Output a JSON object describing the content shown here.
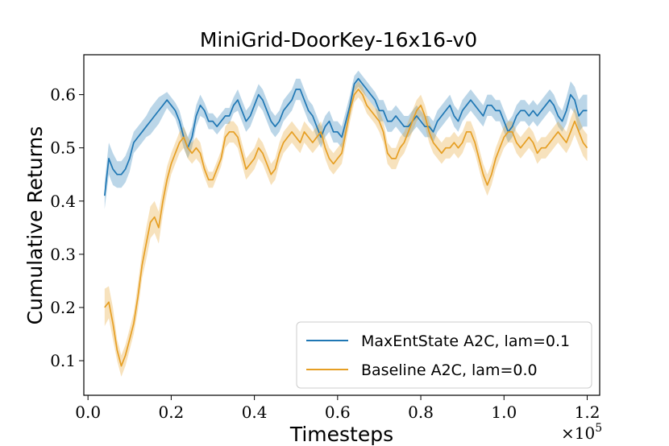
{
  "chart_data": {
    "type": "line",
    "title": "MiniGrid-DoorKey-16x16-v0",
    "xlabel": "Timesteps",
    "ylabel": "Cumulative Returns",
    "x_multiplier_label": "×10",
    "x_multiplier_exp": "5",
    "xlim": [
      -0.01,
      1.23
    ],
    "ylim": [
      0.035,
      0.675
    ],
    "xticks": [
      0.0,
      0.2,
      0.4,
      0.6,
      0.8,
      1.0,
      1.2
    ],
    "xtick_labels": [
      "0.0",
      "0.2",
      "0.4",
      "0.6",
      "0.8",
      "1.0",
      "1.2"
    ],
    "yticks": [
      0.1,
      0.2,
      0.3,
      0.4,
      0.5,
      0.6
    ],
    "ytick_labels": [
      "0.1",
      "0.2",
      "0.3",
      "0.4",
      "0.5",
      "0.6"
    ],
    "grid": false,
    "legend_position": "lower-right",
    "x": [
      0.04,
      0.05,
      0.06,
      0.07,
      0.08,
      0.09,
      0.1,
      0.11,
      0.12,
      0.13,
      0.14,
      0.15,
      0.16,
      0.17,
      0.18,
      0.19,
      0.2,
      0.21,
      0.22,
      0.23,
      0.24,
      0.25,
      0.26,
      0.27,
      0.28,
      0.29,
      0.3,
      0.31,
      0.32,
      0.33,
      0.34,
      0.35,
      0.36,
      0.37,
      0.38,
      0.39,
      0.4,
      0.41,
      0.42,
      0.43,
      0.44,
      0.45,
      0.46,
      0.47,
      0.48,
      0.49,
      0.5,
      0.51,
      0.52,
      0.53,
      0.54,
      0.55,
      0.56,
      0.57,
      0.58,
      0.59,
      0.6,
      0.61,
      0.62,
      0.63,
      0.64,
      0.65,
      0.66,
      0.67,
      0.68,
      0.69,
      0.7,
      0.71,
      0.72,
      0.73,
      0.74,
      0.75,
      0.76,
      0.77,
      0.78,
      0.79,
      0.8,
      0.81,
      0.82,
      0.83,
      0.84,
      0.85,
      0.86,
      0.87,
      0.88,
      0.89,
      0.9,
      0.91,
      0.92,
      0.93,
      0.94,
      0.95,
      0.96,
      0.97,
      0.98,
      0.99,
      1.0,
      1.01,
      1.02,
      1.03,
      1.04,
      1.05,
      1.06,
      1.07,
      1.08,
      1.09,
      1.1,
      1.11,
      1.12,
      1.13,
      1.14,
      1.15,
      1.16,
      1.17,
      1.18,
      1.19,
      1.2
    ],
    "series": [
      {
        "name": "MaxEntState A2C, lam=0.1",
        "color": "#1f77b4",
        "values": [
          0.41,
          0.48,
          0.46,
          0.45,
          0.45,
          0.46,
          0.48,
          0.51,
          0.52,
          0.53,
          0.54,
          0.55,
          0.56,
          0.57,
          0.58,
          0.59,
          0.58,
          0.57,
          0.55,
          0.52,
          0.5,
          0.52,
          0.56,
          0.58,
          0.57,
          0.55,
          0.55,
          0.54,
          0.55,
          0.56,
          0.56,
          0.58,
          0.59,
          0.57,
          0.55,
          0.56,
          0.58,
          0.6,
          0.59,
          0.57,
          0.55,
          0.54,
          0.55,
          0.57,
          0.58,
          0.59,
          0.61,
          0.61,
          0.59,
          0.57,
          0.56,
          0.54,
          0.52,
          0.54,
          0.55,
          0.53,
          0.53,
          0.52,
          0.55,
          0.58,
          0.62,
          0.63,
          0.62,
          0.61,
          0.6,
          0.59,
          0.57,
          0.57,
          0.55,
          0.55,
          0.56,
          0.55,
          0.54,
          0.54,
          0.55,
          0.56,
          0.55,
          0.54,
          0.54,
          0.53,
          0.55,
          0.56,
          0.57,
          0.58,
          0.56,
          0.55,
          0.57,
          0.58,
          0.59,
          0.58,
          0.57,
          0.56,
          0.58,
          0.58,
          0.57,
          0.57,
          0.55,
          0.53,
          0.54,
          0.56,
          0.57,
          0.57,
          0.56,
          0.57,
          0.56,
          0.57,
          0.58,
          0.59,
          0.58,
          0.56,
          0.55,
          0.57,
          0.6,
          0.59,
          0.56,
          0.57,
          0.57
        ],
        "band": [
          0.025,
          0.03,
          0.03,
          0.025,
          0.025,
          0.025,
          0.025,
          0.02,
          0.02,
          0.02,
          0.02,
          0.025,
          0.025,
          0.025,
          0.02,
          0.015,
          0.015,
          0.015,
          0.02,
          0.02,
          0.02,
          0.02,
          0.02,
          0.02,
          0.015,
          0.015,
          0.015,
          0.015,
          0.015,
          0.015,
          0.015,
          0.015,
          0.02,
          0.02,
          0.02,
          0.02,
          0.02,
          0.02,
          0.02,
          0.02,
          0.02,
          0.02,
          0.02,
          0.02,
          0.02,
          0.02,
          0.02,
          0.02,
          0.02,
          0.02,
          0.02,
          0.02,
          0.02,
          0.02,
          0.02,
          0.02,
          0.02,
          0.02,
          0.02,
          0.02,
          0.015,
          0.015,
          0.015,
          0.015,
          0.015,
          0.015,
          0.02,
          0.02,
          0.02,
          0.02,
          0.02,
          0.02,
          0.02,
          0.02,
          0.02,
          0.02,
          0.02,
          0.02,
          0.02,
          0.02,
          0.02,
          0.02,
          0.02,
          0.02,
          0.02,
          0.02,
          0.02,
          0.02,
          0.02,
          0.02,
          0.02,
          0.02,
          0.02,
          0.02,
          0.02,
          0.02,
          0.02,
          0.02,
          0.02,
          0.02,
          0.02,
          0.02,
          0.02,
          0.02,
          0.02,
          0.02,
          0.02,
          0.02,
          0.02,
          0.02,
          0.02,
          0.025,
          0.025,
          0.025,
          0.03,
          0.03,
          0.03
        ]
      },
      {
        "name": "Baseline A2C, lam=0.0",
        "color": "#e69f24",
        "values": [
          0.2,
          0.21,
          0.17,
          0.12,
          0.09,
          0.11,
          0.14,
          0.17,
          0.22,
          0.28,
          0.32,
          0.36,
          0.37,
          0.35,
          0.4,
          0.44,
          0.47,
          0.49,
          0.51,
          0.52,
          0.5,
          0.49,
          0.5,
          0.49,
          0.46,
          0.44,
          0.44,
          0.46,
          0.48,
          0.52,
          0.53,
          0.53,
          0.52,
          0.49,
          0.46,
          0.47,
          0.48,
          0.5,
          0.49,
          0.47,
          0.45,
          0.46,
          0.49,
          0.51,
          0.52,
          0.53,
          0.52,
          0.51,
          0.53,
          0.52,
          0.51,
          0.52,
          0.53,
          0.5,
          0.48,
          0.47,
          0.48,
          0.49,
          0.53,
          0.57,
          0.6,
          0.61,
          0.6,
          0.58,
          0.57,
          0.56,
          0.55,
          0.53,
          0.49,
          0.48,
          0.48,
          0.5,
          0.51,
          0.53,
          0.55,
          0.57,
          0.58,
          0.56,
          0.53,
          0.51,
          0.5,
          0.49,
          0.5,
          0.5,
          0.51,
          0.5,
          0.51,
          0.53,
          0.53,
          0.51,
          0.48,
          0.45,
          0.43,
          0.45,
          0.48,
          0.5,
          0.52,
          0.53,
          0.53,
          0.51,
          0.5,
          0.51,
          0.52,
          0.51,
          0.49,
          0.5,
          0.5,
          0.51,
          0.52,
          0.53,
          0.52,
          0.51,
          0.53,
          0.55,
          0.53,
          0.51,
          0.5
        ],
        "band": [
          0.035,
          0.03,
          0.03,
          0.02,
          0.02,
          0.02,
          0.02,
          0.02,
          0.025,
          0.025,
          0.03,
          0.03,
          0.03,
          0.03,
          0.025,
          0.025,
          0.02,
          0.02,
          0.02,
          0.02,
          0.02,
          0.02,
          0.02,
          0.02,
          0.015,
          0.015,
          0.015,
          0.015,
          0.015,
          0.02,
          0.02,
          0.02,
          0.02,
          0.02,
          0.02,
          0.02,
          0.02,
          0.02,
          0.02,
          0.02,
          0.02,
          0.02,
          0.02,
          0.02,
          0.02,
          0.02,
          0.02,
          0.02,
          0.02,
          0.02,
          0.02,
          0.02,
          0.02,
          0.02,
          0.02,
          0.02,
          0.02,
          0.02,
          0.02,
          0.02,
          0.015,
          0.015,
          0.015,
          0.015,
          0.015,
          0.015,
          0.02,
          0.02,
          0.02,
          0.02,
          0.02,
          0.02,
          0.02,
          0.02,
          0.02,
          0.02,
          0.02,
          0.02,
          0.02,
          0.02,
          0.02,
          0.02,
          0.02,
          0.02,
          0.02,
          0.02,
          0.02,
          0.02,
          0.02,
          0.02,
          0.02,
          0.02,
          0.02,
          0.02,
          0.02,
          0.02,
          0.02,
          0.02,
          0.02,
          0.02,
          0.02,
          0.02,
          0.02,
          0.02,
          0.02,
          0.02,
          0.02,
          0.02,
          0.02,
          0.02,
          0.02,
          0.02,
          0.025,
          0.025,
          0.025,
          0.025,
          0.025
        ]
      }
    ]
  }
}
